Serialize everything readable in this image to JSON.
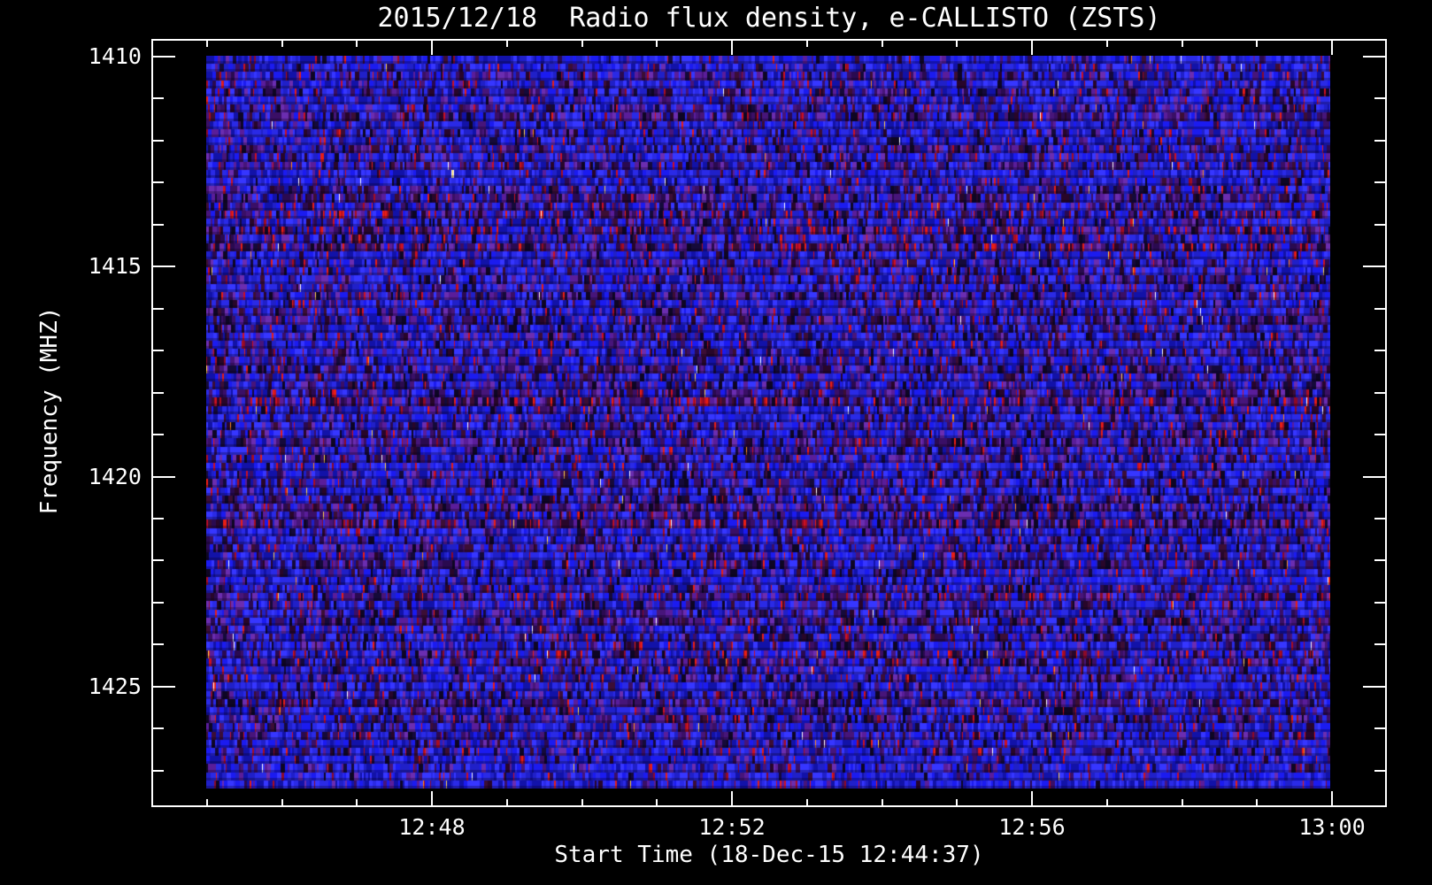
{
  "title": "2015/12/18  Radio flux density, e-CALLISTO (ZSTS)",
  "x_axis": {
    "label": "Start Time (18-Dec-15 12:44:37)",
    "major_tick_labels": [
      "12:48",
      "12:52",
      "12:56",
      "13:00"
    ],
    "major_tick_minutes": [
      48,
      52,
      56,
      60
    ],
    "minor_tick_minutes": [
      45,
      46,
      47,
      49,
      50,
      51,
      53,
      54,
      55,
      57,
      58,
      59
    ]
  },
  "y_axis": {
    "label": "Frequency (MHZ)",
    "major_tick_labels": [
      "1410",
      "1415",
      "1420",
      "1425"
    ],
    "major_tick_mhz": [
      1410,
      1415,
      1420,
      1425
    ],
    "minor_tick_mhz": [
      1411,
      1412,
      1413,
      1414,
      1416,
      1417,
      1418,
      1419,
      1421,
      1422,
      1423,
      1424,
      1426,
      1427
    ]
  },
  "colors": {
    "background": "#000000",
    "frame": "#ffffff",
    "text": "#ffffff"
  },
  "chart_data": {
    "type": "heatmap",
    "title": "2015/12/18  Radio flux density, e-CALLISTO (ZSTS)",
    "xlabel": "Start Time (18-Dec-15 12:44:37)",
    "ylabel": "Frequency (MHZ)",
    "x_range_time": [
      "12:44:37",
      "13:00:00"
    ],
    "data_span_time": [
      "12:45:00",
      "13:00:00"
    ],
    "x_major_ticks": [
      "12:48",
      "12:52",
      "12:56",
      "13:00"
    ],
    "x_minor_tick_interval_s": 60,
    "y_range_mhz": [
      1410,
      1427.5
    ],
    "y_major_ticks_mhz": [
      1410,
      1415,
      1420,
      1425
    ],
    "y_minor_tick_interval_mhz": 1,
    "y_axis_inverted": true,
    "legend": "none",
    "grid": "off",
    "description": "Uniform blue/purple radio background noise with scattered red flecks and rare orange/white pixels; horizontal channel banding, no burst features",
    "noise": {
      "seed": 20151218,
      "row_count": 90,
      "red_fleck_probability": 0.07,
      "rare_fleck_probability": 0.006,
      "red_row_extra_probability": 0.16,
      "red_row_indices": [
        19,
        21,
        23,
        42,
        57,
        66,
        73
      ],
      "row_profile": [
        0.85,
        0.8,
        0.6,
        0.75,
        0.5,
        0.7,
        0.55,
        0.4,
        0.8,
        0.6,
        0.75,
        0.45,
        0.7,
        0.55,
        0.85,
        0.8,
        0.5,
        0.35,
        0.55,
        0.45,
        0.6,
        0.35,
        0.65,
        0.3,
        0.8,
        0.6,
        0.7,
        0.5,
        0.65,
        0.45,
        0.75,
        0.55,
        0.4,
        0.7,
        0.6,
        0.8,
        0.5,
        0.65,
        0.35,
        0.7,
        0.6,
        0.45,
        0.3,
        0.65,
        0.75,
        0.55,
        0.7,
        0.4,
        0.6,
        0.5,
        0.8,
        0.65,
        0.45,
        0.7,
        0.55,
        0.35,
        0.6,
        0.3,
        0.75,
        0.6,
        0.5,
        0.7,
        0.45,
        0.65,
        0.8,
        0.55,
        0.4,
        0.7,
        0.6,
        0.35,
        0.65,
        0.5,
        0.75,
        0.6,
        0.45,
        0.7,
        0.55,
        0.8,
        0.6,
        0.4,
        0.7,
        0.5,
        0.65,
        0.55,
        0.75,
        0.6,
        0.85,
        0.7,
        0.9,
        0.85
      ]
    },
    "palette": {
      "bright_blues": [
        "#1b1bf0",
        "#2a2ae6",
        "#3636ff",
        "#2020c8",
        "#1212a8"
      ],
      "purples": [
        "#5a1d9a",
        "#6b2db0",
        "#47157a",
        "#3a0f66"
      ],
      "darks": [
        "#2a0a50",
        "#150a3a",
        "#0e0624",
        "#3c0e35",
        "#28062a"
      ],
      "reds": [
        "#cc1022",
        "#e81e14",
        "#a80d20",
        "#8c0a28"
      ],
      "rare_flecks": [
        "#ff8c1a",
        "#ffd24d",
        "#ffffff"
      ]
    }
  }
}
